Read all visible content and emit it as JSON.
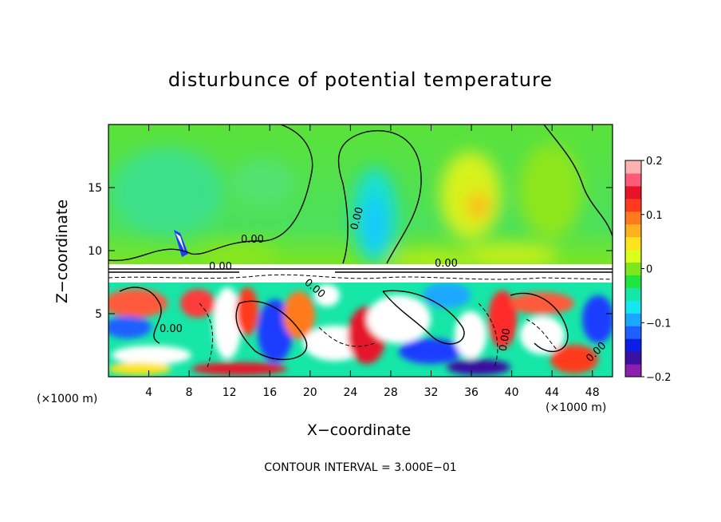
{
  "chart_data": {
    "type": "heatmap",
    "title": "disturbunce of potential temperature",
    "xlabel": "X−coordinate",
    "ylabel": "Z−coordinate",
    "x_unit_label_left": "(×1000 m)",
    "x_unit_label_right": "(×1000 m)",
    "x_ticks": [
      4,
      8,
      12,
      16,
      20,
      24,
      28,
      32,
      36,
      40,
      44,
      48
    ],
    "y_ticks": [
      5,
      10,
      15
    ],
    "xlim": [
      0,
      50
    ],
    "ylim": [
      0,
      20
    ],
    "colorbar": {
      "range": [
        -0.2,
        0.2
      ],
      "ticks": [
        "0.2",
        "0.1",
        "0",
        "−0.1",
        "−0.2"
      ],
      "colors": [
        "#8a1fb0",
        "#3a10a0",
        "#0a1ee6",
        "#1e60ff",
        "#1aa8ff",
        "#16e6f0",
        "#16e6a8",
        "#1ee63c",
        "#7ee61c",
        "#d8ff1e",
        "#ffe31e",
        "#ffb01e",
        "#ff7a1e",
        "#ff3a1e",
        "#e6142a",
        "#ff5a78",
        "#ffb0b0"
      ]
    },
    "contour_labels": [
      "0.00",
      "0.00",
      "0.00",
      "0.00",
      "0.00",
      "0.00",
      "0.00",
      "0.00"
    ],
    "contour_interval_text": "CONTOUR INTERVAL = 3.000E−01",
    "colors": {
      "upper_field": "#55e23a",
      "warm_plume": "#ffd41e",
      "cool_plume": "#14e4d8",
      "band": "#ffffff"
    }
  }
}
